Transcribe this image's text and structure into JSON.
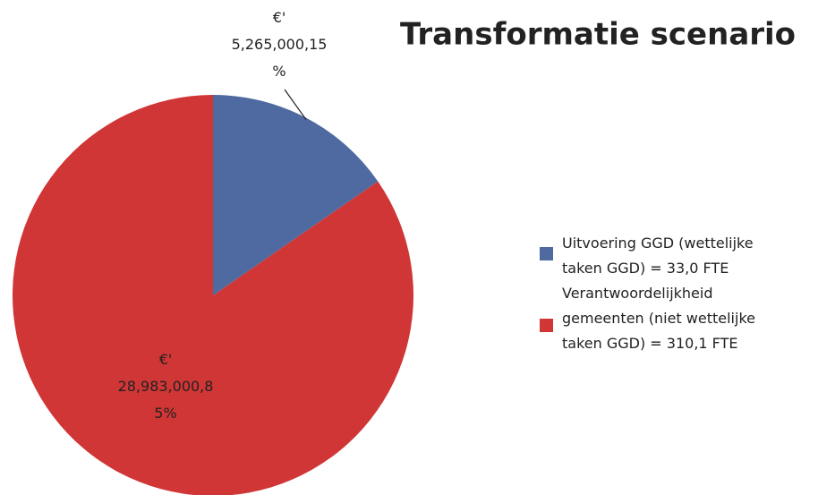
{
  "chart_data": {
    "type": "pie",
    "title": "Transformatie scenario",
    "categories": [
      "Uitvoering GGD (wettelijke\ntaken GGD) = 33,0 FTE",
      "Verantwoordelijkheid\ngemeenten (niet wettelijke\ntaken GGD) = 310,1 FTE"
    ],
    "values": [
      5265000,
      28983000
    ],
    "value_labels": [
      "€'\n5,265,000,15\n%",
      "€'\n28,983,000,8\n5%"
    ],
    "colors": [
      "#4f6aa0",
      "#d03636"
    ],
    "legend": "right"
  }
}
